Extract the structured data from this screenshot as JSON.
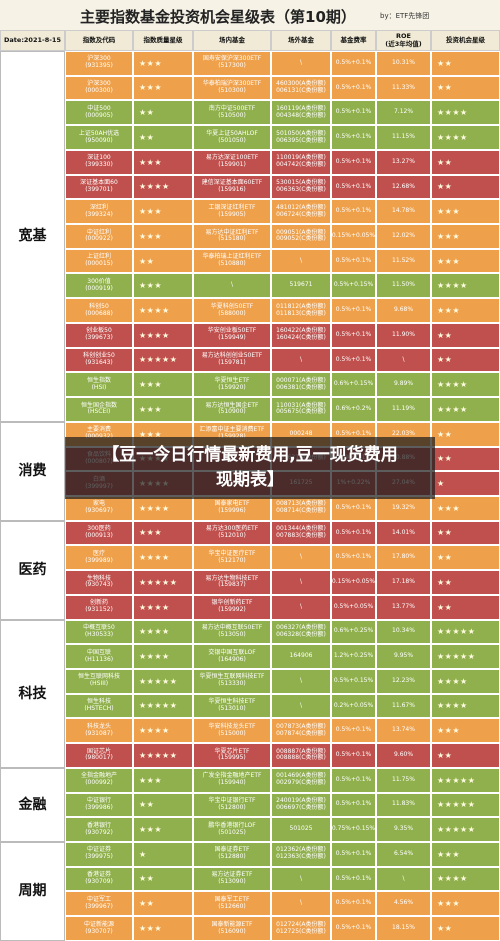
{
  "header": {
    "title": "主要指数基金投资机会星级表（第10期）",
    "byline": "by：ETF先锋团"
  },
  "columns": [
    "Date:2021-8-15",
    "指数及代码",
    "指数质量星级",
    "场内基金",
    "场外基金",
    "基金费率",
    "ROE\n(近3年均值)",
    "投资机会星级"
  ],
  "groups": [
    {
      "label": "宽基",
      "rows": [
        {
          "color": "#eea04a",
          "cells": [
            "沪深300\n(931395)",
            "★★★",
            "国寿安保沪深300ETF\n(517300)",
            "\\",
            "0.5%+0.1%",
            "10.31%",
            "★★"
          ]
        },
        {
          "color": "#eea04a",
          "cells": [
            "沪深300\n(000300)",
            "★★★",
            "华泰柏瑞沪深300ETF\n(510300)",
            "460300(A类份额)\n006131(C类份额)",
            "0.5%+0.1%",
            "11.33%",
            "★★"
          ]
        },
        {
          "color": "#8fb04c",
          "cells": [
            "中证500\n(000905)",
            "★★",
            "南方中证500ETF\n(510500)",
            "160119(A类份额)\n004348(C类份额)",
            "0.5%+0.1%",
            "7.12%",
            "★★★★"
          ]
        },
        {
          "color": "#8fb04c",
          "cells": [
            "上证50AH优选\n(950090)",
            "★★",
            "华夏上证50AHLOF\n(501050)",
            "501050(A类份额)\n006395(C类份额)",
            "0.5%+0.1%",
            "11.15%",
            "★★★★"
          ]
        },
        {
          "color": "#c0504d",
          "cells": [
            "深证100\n(399330)",
            "★★★",
            "易方达深证100ETF\n(159901)",
            "110019(A类份额)\n004742(C类份额)",
            "0.5%+0.1%",
            "13.27%",
            "★★"
          ]
        },
        {
          "color": "#c0504d",
          "cells": [
            "深证基本面60\n(399701)",
            "★★★★",
            "建信深证基本面60ETF\n(159916)",
            "530015(A类份额)\n006363(C类份额)",
            "0.5%+0.1%",
            "12.68%",
            "★★"
          ]
        },
        {
          "color": "#eea04a",
          "cells": [
            "深红利\n(399324)",
            "★★★",
            "工银深证红利ETF\n(159905)",
            "481012(A类份额)\n006724(C类份额)",
            "0.5%+0.1%",
            "14.78%",
            "★★★"
          ]
        },
        {
          "color": "#eea04a",
          "cells": [
            "中证红利\n(000922)",
            "★★★",
            "易方达中证红利ETF\n(515180)",
            "009051(A类份额)\n009052(C类份额)",
            "0.15%+0.05%",
            "12.02%",
            "★★★"
          ]
        },
        {
          "color": "#eea04a",
          "cells": [
            "上证红利\n(000015)",
            "★★",
            "华泰柏瑞上证红利ETF\n(510880)",
            "\\",
            "0.5%+0.1%",
            "11.52%",
            "★★★"
          ]
        },
        {
          "color": "#8fb04c",
          "cells": [
            "300价值\n(000919)",
            "★★★",
            "\\",
            "519671",
            "0.5%+0.15%",
            "11.50%",
            "★★★★"
          ]
        },
        {
          "color": "#eea04a",
          "cells": [
            "科创50\n(000688)",
            "★★★★",
            "华夏科创50ETF\n(588000)",
            "011812(A类份额)\n011813(C类份额)",
            "0.5%+0.1%",
            "9.68%",
            "★★★"
          ]
        },
        {
          "color": "#c0504d",
          "cells": [
            "创业板50\n(399673)",
            "★★★★",
            "华安创业板50ETF\n(159949)",
            "160422(A类份额)\n160424(C类份额)",
            "0.5%+0.1%",
            "11.90%",
            "★★"
          ]
        },
        {
          "color": "#c0504d",
          "cells": [
            "科创创业50\n(931643)",
            "★★★★★",
            "易方达科创创业50ETF\n(159781)",
            "\\",
            "0.5%+0.1%",
            "\\",
            "★★"
          ]
        },
        {
          "color": "#8fb04c",
          "cells": [
            "恒生指数\n(HSI)",
            "★★★",
            "华夏恒生ETF\n(159920)",
            "000071(A类份额)\n006381(C类份额)",
            "0.6%+0.15%",
            "9.89%",
            "★★★★"
          ]
        },
        {
          "color": "#8fb04c",
          "cells": [
            "恒生国企指数\n(HSCEI)",
            "★★★",
            "易方达恒生国企ETF\n(510900)",
            "110031(A类份额)\n005675(C类份额)",
            "0.6%+0.2%",
            "11.19%",
            "★★★★"
          ]
        }
      ]
    },
    {
      "label": "消费",
      "rows": [
        {
          "color": "#eea04a",
          "cells": [
            "主要消费\n(000932)",
            "★★★",
            "汇添富中证主要消费ETF\n(159928)",
            "000248",
            "0.5%+0.1%",
            "22.03%",
            "★★"
          ]
        },
        {
          "color": "#c0504d",
          "cells": [
            "食品饮料\n(000807)",
            "★★★★",
            "\\",
            "001631(A类份额)",
            "0.5%+0.1%",
            "20.88%",
            "★★"
          ]
        },
        {
          "color": "#c0504d",
          "cells": [
            "白酒\n(399997)",
            "★★★★",
            "\\",
            "161725",
            "1%+0.22%",
            "27.04%",
            "★"
          ]
        },
        {
          "color": "#eea04a",
          "cells": [
            "家电\n(930697)",
            "★★★★",
            "国泰家电ETF\n(159996)",
            "008713(A类份额)\n008714(C类份额)",
            "0.5%+0.1%",
            "19.32%",
            "★★★"
          ]
        }
      ]
    },
    {
      "label": "医药",
      "rows": [
        {
          "color": "#c0504d",
          "cells": [
            "300医药\n(000913)",
            "★★★",
            "易方达300医药ETF\n(512010)",
            "001344(A类份额)\n007883(C类份额)",
            "0.5%+0.1%",
            "14.01%",
            "★★"
          ]
        },
        {
          "color": "#eea04a",
          "cells": [
            "医疗\n(399989)",
            "★★★★",
            "华宝中证医疗ETF\n(512170)",
            "\\",
            "0.5%+0.1%",
            "17.80%",
            "★★"
          ]
        },
        {
          "color": "#c0504d",
          "cells": [
            "生物科技\n(930743)",
            "★★★★★",
            "易方达生物科技ETF\n(159837)",
            "\\",
            "0.15%+0.05%",
            "17.18%",
            "★★"
          ]
        },
        {
          "color": "#c0504d",
          "cells": [
            "创新药\n(931152)",
            "★★★★",
            "银华创新药ETF\n(159992)",
            "\\",
            "0.5%+0.05%",
            "13.77%",
            "★★"
          ]
        }
      ]
    },
    {
      "label": "科技",
      "rows": [
        {
          "color": "#8fb04c",
          "cells": [
            "中概互联50\n(H30533)",
            "★★★★",
            "易方达中概互联50ETF\n(513050)",
            "006327(A类份额)\n006328(C类份额)",
            "0.6%+0.25%",
            "10.34%",
            "★★★★★"
          ]
        },
        {
          "color": "#8fb04c",
          "cells": [
            "中国互联\n(H11136)",
            "★★★★",
            "交银中国互联LOF\n(164906)",
            "164906",
            "1.2%+0.25%",
            "9.95%",
            "★★★★★"
          ]
        },
        {
          "color": "#8fb04c",
          "cells": [
            "恒生互联网科技\n(HSIII)",
            "★★★★★",
            "华夏恒生互联网科技ETF\n(513330)",
            "\\",
            "0.5%+0.15%",
            "12.23%",
            "★★★★"
          ]
        },
        {
          "color": "#8fb04c",
          "cells": [
            "恒生科技\n(HSTECH)",
            "★★★★★",
            "华夏恒生科技ETF\n(513010)",
            "\\",
            "0.2%+0.05%",
            "11.67%",
            "★★★★"
          ]
        },
        {
          "color": "#eea04a",
          "cells": [
            "科技龙头\n(931087)",
            "★★★★",
            "华安科技龙头ETF\n(515000)",
            "007873(A类份额)\n007874(C类份额)",
            "0.5%+0.1%",
            "13.74%",
            "★★★"
          ]
        },
        {
          "color": "#c0504d",
          "cells": [
            "国证芯片\n(980017)",
            "★★★★★",
            "华夏芯片ETF\n(159995)",
            "008887(A类份额)\n008888(C类份额)",
            "0.5%+0.1%",
            "9.60%",
            "★★"
          ]
        }
      ]
    },
    {
      "label": "金融",
      "rows": [
        {
          "color": "#8fb04c",
          "cells": [
            "全指金融地产\n(000992)",
            "★★★",
            "广发全指金融地产ETF\n(159940)",
            "001469(A类份额)\n002979(C类份额)",
            "0.5%+0.1%",
            "11.75%",
            "★★★★★"
          ]
        },
        {
          "color": "#8fb04c",
          "cells": [
            "中证银行\n(399986)",
            "★★",
            "华宝中证银行ETF\n(512800)",
            "240019(A类份额)\n006697(C类份额)",
            "0.5%+0.1%",
            "11.83%",
            "★★★★★"
          ]
        },
        {
          "color": "#8fb04c",
          "cells": [
            "香港银行\n(930792)",
            "★★★",
            "鹏华香港银行LOF\n(501025)",
            "501025",
            "0.75%+0.15%",
            "9.35%",
            "★★★★★"
          ]
        }
      ]
    },
    {
      "label": "周期",
      "rows": [
        {
          "color": "#8fb04c",
          "cells": [
            "中证证券\n(399975)",
            "★",
            "国泰证券ETF\n(512880)",
            "012362(A类份额)\n012363(C类份额)",
            "0.5%+0.1%",
            "6.54%",
            "★★★"
          ]
        },
        {
          "color": "#8fb04c",
          "cells": [
            "香港证券\n(930709)",
            "★★",
            "易方达证券ETF\n(513090)",
            "\\",
            "0.5%+0.1%",
            "\\",
            "★★★★"
          ]
        },
        {
          "color": "#eea04a",
          "cells": [
            "中证军工\n(399967)",
            "★★",
            "国泰军工ETF\n(512660)",
            "\\",
            "0.5%+0.1%",
            "4.56%",
            "★★★"
          ]
        },
        {
          "color": "#eea04a",
          "cells": [
            "中证新能源\n(930707)",
            "★★★",
            "国泰新能源ETF\n(516090)",
            "012724(A类份额)\n012725(C类份额)",
            "0.5%+0.1%",
            "18.15%",
            "★★"
          ]
        }
      ]
    }
  ],
  "banner": "【豆一今日行情最新费用,豆一现货费用现期表】"
}
